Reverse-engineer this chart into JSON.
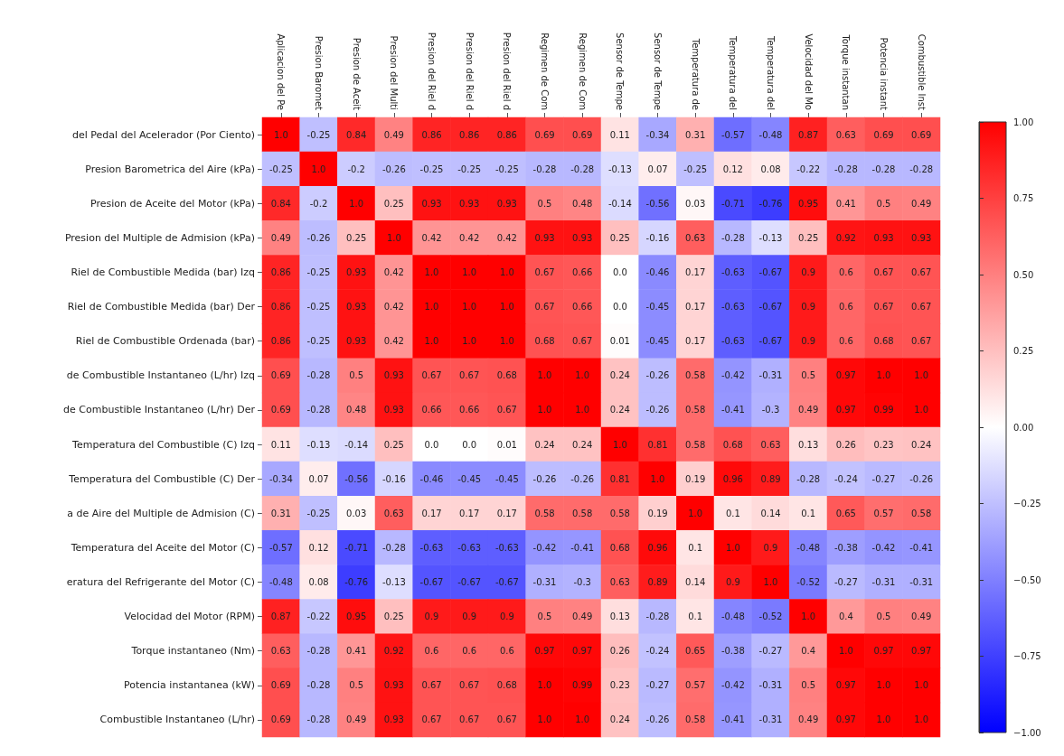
{
  "chart_data": {
    "type": "heatmap",
    "categories": [
      "Aplicacion del Pe",
      "Presion Baromet",
      "Presion de Aceit",
      "Presion del Multi",
      "Presion del Riel d",
      "Presion del Riel d",
      "Presion del Riel d",
      "Regimen de Com",
      "Regimen de Com",
      "Sensor de Tempe",
      "Sensor de Tempe",
      "Temperatura de",
      "Temperatura del",
      "Temperatura del",
      "Velocidad del Mo",
      "Torque instantan",
      "Potencia instant",
      "Combustible Inst"
    ],
    "y_categories": [
      "del Pedal del Acelerador (Por Ciento)",
      "Presion Barometrica del Aire (kPa)",
      "Presion de Aceite del Motor (kPa)",
      "Presion del Multiple de Admision (kPa)",
      "Riel de Combustible Medida (bar) Izq",
      "Riel de Combustible Medida (bar) Der",
      "Riel de Combustible Ordenada (bar)",
      "de Combustible Instantaneo (L/hr) Izq",
      "de Combustible Instantaneo (L/hr) Der",
      "Temperatura del Combustible (C) Izq",
      "Temperatura del Combustible (C) Der",
      "a de Aire del Multiple de Admision (C)",
      "Temperatura del Aceite del Motor (C)",
      "eratura del Refrigerante del Motor (C)",
      "Velocidad del Motor (RPM)",
      "Torque instantaneo (Nm)",
      "Potencia instantanea (kW)",
      "Combustible Instantaneo (L/hr)"
    ],
    "cells": [
      [
        1,
        -0.25,
        0.84,
        0.49,
        0.86,
        0.86,
        0.86,
        0.69,
        0.69,
        0.11,
        -0.34,
        0.31,
        -0.57,
        -0.48,
        0.87,
        0.63,
        0.69,
        0.69
      ],
      [
        -0.25,
        1,
        -0.2,
        -0.26,
        -0.25,
        -0.25,
        -0.25,
        -0.28,
        -0.28,
        -0.13,
        0.07,
        -0.25,
        0.12,
        0.08,
        -0.22,
        -0.28,
        -0.28,
        -0.28
      ],
      [
        0.84,
        -0.2,
        1,
        0.25,
        0.93,
        0.93,
        0.93,
        0.5,
        0.48,
        -0.14,
        -0.56,
        0.03,
        -0.71,
        -0.76,
        0.95,
        0.41,
        0.5,
        0.49
      ],
      [
        0.49,
        -0.26,
        0.25,
        1,
        0.42,
        0.42,
        0.42,
        0.93,
        0.93,
        0.25,
        -0.16,
        0.63,
        -0.28,
        -0.13,
        0.25,
        0.92,
        0.93,
        0.93
      ],
      [
        0.86,
        -0.25,
        0.93,
        0.42,
        1,
        1,
        1,
        0.67,
        0.66,
        0,
        -0.46,
        0.17,
        -0.63,
        -0.67,
        0.9,
        0.6,
        0.67,
        0.67
      ],
      [
        0.86,
        -0.25,
        0.93,
        0.42,
        1,
        1,
        1,
        0.67,
        0.66,
        0,
        -0.45,
        0.17,
        -0.63,
        -0.67,
        0.9,
        0.6,
        0.67,
        0.67
      ],
      [
        0.86,
        -0.25,
        0.93,
        0.42,
        1,
        1,
        1,
        0.68,
        0.67,
        0.01,
        -0.45,
        0.17,
        -0.63,
        -0.67,
        0.9,
        0.6,
        0.68,
        0.67
      ],
      [
        0.69,
        -0.28,
        0.5,
        0.93,
        0.67,
        0.67,
        0.68,
        1,
        1,
        0.24,
        -0.26,
        0.58,
        -0.42,
        -0.31,
        0.5,
        0.97,
        1,
        1
      ],
      [
        0.69,
        -0.28,
        0.48,
        0.93,
        0.66,
        0.66,
        0.67,
        1,
        1,
        0.24,
        -0.26,
        0.58,
        -0.41,
        -0.3,
        0.49,
        0.97,
        0.99,
        1
      ],
      [
        0.11,
        -0.13,
        -0.14,
        0.25,
        0,
        0,
        0.01,
        0.24,
        0.24,
        1,
        0.81,
        0.58,
        0.68,
        0.63,
        0.13,
        0.26,
        0.23,
        0.24
      ],
      [
        -0.34,
        0.07,
        -0.56,
        -0.16,
        -0.46,
        -0.45,
        -0.45,
        -0.26,
        -0.26,
        0.81,
        1,
        0.19,
        0.96,
        0.89,
        -0.28,
        -0.24,
        -0.27,
        -0.26
      ],
      [
        0.31,
        -0.25,
        0.03,
        0.63,
        0.17,
        0.17,
        0.17,
        0.58,
        0.58,
        0.58,
        0.19,
        1,
        0.1,
        0.14,
        0.1,
        0.65,
        0.57,
        0.58
      ],
      [
        -0.57,
        0.12,
        -0.71,
        -0.28,
        -0.63,
        -0.63,
        -0.63,
        -0.42,
        -0.41,
        0.68,
        0.96,
        0.1,
        1,
        0.9,
        -0.48,
        -0.38,
        -0.42,
        -0.41
      ],
      [
        -0.48,
        0.08,
        -0.76,
        -0.13,
        -0.67,
        -0.67,
        -0.67,
        -0.31,
        -0.3,
        0.63,
        0.89,
        0.14,
        0.9,
        1,
        -0.52,
        -0.27,
        -0.31,
        -0.31
      ],
      [
        0.87,
        -0.22,
        0.95,
        0.25,
        0.9,
        0.9,
        0.9,
        0.5,
        0.49,
        0.13,
        -0.28,
        0.1,
        -0.48,
        -0.52,
        1,
        0.4,
        0.5,
        0.49
      ],
      [
        0.63,
        -0.28,
        0.41,
        0.92,
        0.6,
        0.6,
        0.6,
        0.97,
        0.97,
        0.26,
        -0.24,
        0.65,
        -0.38,
        -0.27,
        0.4,
        1,
        0.97,
        0.97
      ],
      [
        0.69,
        -0.28,
        0.5,
        0.93,
        0.67,
        0.67,
        0.68,
        1,
        0.99,
        0.23,
        -0.27,
        0.57,
        -0.42,
        -0.31,
        0.5,
        0.97,
        1,
        1
      ],
      [
        0.69,
        -0.28,
        0.49,
        0.93,
        0.67,
        0.67,
        0.67,
        1,
        1,
        0.24,
        -0.26,
        0.58,
        -0.41,
        -0.31,
        0.49,
        0.97,
        1,
        1
      ]
    ],
    "cell_labels": [
      [
        "1.0",
        "-0.25",
        "0.84",
        "0.49",
        "0.86",
        "0.86",
        "0.86",
        "0.69",
        "0.69",
        "0.11",
        "-0.34",
        "0.31",
        "-0.57",
        "-0.48",
        "0.87",
        "0.63",
        "0.69",
        "0.69"
      ],
      [
        "-0.25",
        "1.0",
        "-0.2",
        "-0.26",
        "-0.25",
        "-0.25",
        "-0.25",
        "-0.28",
        "-0.28",
        "-0.13",
        "0.07",
        "-0.25",
        "0.12",
        "0.08",
        "-0.22",
        "-0.28",
        "-0.28",
        "-0.28"
      ],
      [
        "0.84",
        "-0.2",
        "1.0",
        "0.25",
        "0.93",
        "0.93",
        "0.93",
        "0.5",
        "0.48",
        "-0.14",
        "-0.56",
        "0.03",
        "-0.71",
        "-0.76",
        "0.95",
        "0.41",
        "0.5",
        "0.49"
      ],
      [
        "0.49",
        "-0.26",
        "0.25",
        "1.0",
        "0.42",
        "0.42",
        "0.42",
        "0.93",
        "0.93",
        "0.25",
        "-0.16",
        "0.63",
        "-0.28",
        "-0.13",
        "0.25",
        "0.92",
        "0.93",
        "0.93"
      ],
      [
        "0.86",
        "-0.25",
        "0.93",
        "0.42",
        "1.0",
        "1.0",
        "1.0",
        "0.67",
        "0.66",
        "0.0",
        "-0.46",
        "0.17",
        "-0.63",
        "-0.67",
        "0.9",
        "0.6",
        "0.67",
        "0.67"
      ],
      [
        "0.86",
        "-0.25",
        "0.93",
        "0.42",
        "1.0",
        "1.0",
        "1.0",
        "0.67",
        "0.66",
        "0.0",
        "-0.45",
        "0.17",
        "-0.63",
        "-0.67",
        "0.9",
        "0.6",
        "0.67",
        "0.67"
      ],
      [
        "0.86",
        "-0.25",
        "0.93",
        "0.42",
        "1.0",
        "1.0",
        "1.0",
        "0.68",
        "0.67",
        "0.01",
        "-0.45",
        "0.17",
        "-0.63",
        "-0.67",
        "0.9",
        "0.6",
        "0.68",
        "0.67"
      ],
      [
        "0.69",
        "-0.28",
        "0.5",
        "0.93",
        "0.67",
        "0.67",
        "0.68",
        "1.0",
        "1.0",
        "0.24",
        "-0.26",
        "0.58",
        "-0.42",
        "-0.31",
        "0.5",
        "0.97",
        "1.0",
        "1.0"
      ],
      [
        "0.69",
        "-0.28",
        "0.48",
        "0.93",
        "0.66",
        "0.66",
        "0.67",
        "1.0",
        "1.0",
        "0.24",
        "-0.26",
        "0.58",
        "-0.41",
        "-0.3",
        "0.49",
        "0.97",
        "0.99",
        "1.0"
      ],
      [
        "0.11",
        "-0.13",
        "-0.14",
        "0.25",
        "0.0",
        "0.0",
        "0.01",
        "0.24",
        "0.24",
        "1.0",
        "0.81",
        "0.58",
        "0.68",
        "0.63",
        "0.13",
        "0.26",
        "0.23",
        "0.24"
      ],
      [
        "-0.34",
        "0.07",
        "-0.56",
        "-0.16",
        "-0.46",
        "-0.45",
        "-0.45",
        "-0.26",
        "-0.26",
        "0.81",
        "1.0",
        "0.19",
        "0.96",
        "0.89",
        "-0.28",
        "-0.24",
        "-0.27",
        "-0.26"
      ],
      [
        "0.31",
        "-0.25",
        "0.03",
        "0.63",
        "0.17",
        "0.17",
        "0.17",
        "0.58",
        "0.58",
        "0.58",
        "0.19",
        "1.0",
        "0.1",
        "0.14",
        "0.1",
        "0.65",
        "0.57",
        "0.58"
      ],
      [
        "-0.57",
        "0.12",
        "-0.71",
        "-0.28",
        "-0.63",
        "-0.63",
        "-0.63",
        "-0.42",
        "-0.41",
        "0.68",
        "0.96",
        "0.1",
        "1.0",
        "0.9",
        "-0.48",
        "-0.38",
        "-0.42",
        "-0.41"
      ],
      [
        "-0.48",
        "0.08",
        "-0.76",
        "-0.13",
        "-0.67",
        "-0.67",
        "-0.67",
        "-0.31",
        "-0.3",
        "0.63",
        "0.89",
        "0.14",
        "0.9",
        "1.0",
        "-0.52",
        "-0.27",
        "-0.31",
        "-0.31"
      ],
      [
        "0.87",
        "-0.22",
        "0.95",
        "0.25",
        "0.9",
        "0.9",
        "0.9",
        "0.5",
        "0.49",
        "0.13",
        "-0.28",
        "0.1",
        "-0.48",
        "-0.52",
        "1.0",
        "0.4",
        "0.5",
        "0.49"
      ],
      [
        "0.63",
        "-0.28",
        "0.41",
        "0.92",
        "0.6",
        "0.6",
        "0.6",
        "0.97",
        "0.97",
        "0.26",
        "-0.24",
        "0.65",
        "-0.38",
        "-0.27",
        "0.4",
        "1.0",
        "0.97",
        "0.97"
      ],
      [
        "0.69",
        "-0.28",
        "0.5",
        "0.93",
        "0.67",
        "0.67",
        "0.68",
        "1.0",
        "0.99",
        "0.23",
        "-0.27",
        "0.57",
        "-0.42",
        "-0.31",
        "0.5",
        "0.97",
        "1.0",
        "1.0"
      ],
      [
        "0.69",
        "-0.28",
        "0.49",
        "0.93",
        "0.67",
        "0.67",
        "0.67",
        "1.0",
        "1.0",
        "0.24",
        "-0.26",
        "0.58",
        "-0.41",
        "-0.31",
        "0.49",
        "0.97",
        "1.0",
        "1.0"
      ]
    ],
    "data_labels": true,
    "clim": [
      -1,
      1
    ],
    "cticks": [
      {
        "value": -1,
        "label": "−1.00"
      },
      {
        "value": -0.75,
        "label": "−0.75"
      },
      {
        "value": -0.5,
        "label": "−0.50"
      },
      {
        "value": -0.25,
        "label": "−0.25"
      },
      {
        "value": 0,
        "label": "0.00"
      },
      {
        "value": 0.25,
        "label": "0.25"
      },
      {
        "value": 0.5,
        "label": "0.50"
      },
      {
        "value": 0.75,
        "label": "0.75"
      },
      {
        "value": 1,
        "label": "1.00"
      }
    ]
  }
}
